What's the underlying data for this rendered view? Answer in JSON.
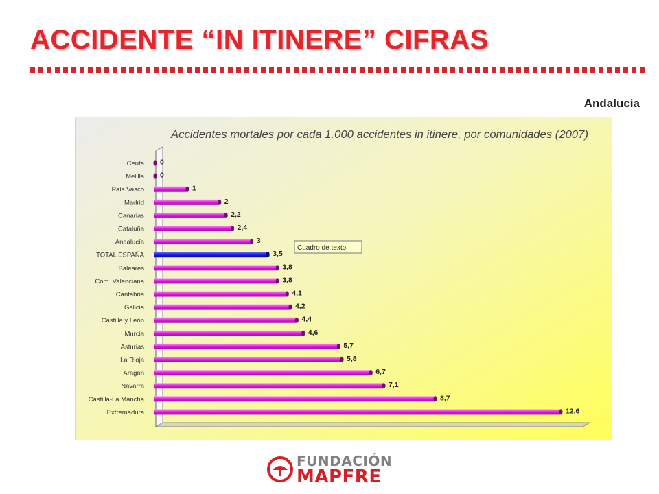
{
  "header": {
    "title": "ACCIDENTE “IN ITINERE” CIFRAS",
    "region": "Andalucía"
  },
  "chart_data": {
    "type": "bar",
    "orientation": "horizontal",
    "title": "Accidentes mortales por cada 1.000 accidentes in itinere, por comunidades (2007)",
    "categories": [
      "Ceuta",
      "Melilla",
      "País Vasco",
      "Madrid",
      "Canarias",
      "Cataluña",
      "Andalucía",
      "TOTAL ESPAÑA",
      "Baleares",
      "Com. Valenciana",
      "Cantabria",
      "Galicia",
      "Castilla y León",
      "Murcia",
      "Asturias",
      "La Rioja",
      "Aragón",
      "Navarra",
      "Castilla-La Mancha",
      "Extremadura"
    ],
    "values": [
      0,
      0,
      1,
      2,
      2.2,
      2.4,
      3,
      3.5,
      3.8,
      3.8,
      4.1,
      4.2,
      4.4,
      4.6,
      5.7,
      5.8,
      6.7,
      7.1,
      8.7,
      12.6
    ],
    "value_labels": [
      "0",
      "0",
      "1",
      "2",
      "2,2",
      "2,4",
      "3",
      "3,5",
      "3,8",
      "3,8",
      "4,1",
      "4,2",
      "4,4",
      "4,6",
      "5,7",
      "5,8",
      "6,7",
      "7,1",
      "8,7",
      "12,6"
    ],
    "highlight_category": "TOTAL ESPAÑA",
    "colors": {
      "bar": "#e61fe6",
      "highlight": "#1a1ae6",
      "background_top": "#e8e8e8",
      "background_bottom": "#ffff66"
    },
    "annotation": "Cuadro de texto:",
    "xlim": [
      0,
      12.6
    ]
  },
  "footer": {
    "logo_line1": "FUNDACIÓN",
    "logo_line2": "MAPFRE"
  }
}
